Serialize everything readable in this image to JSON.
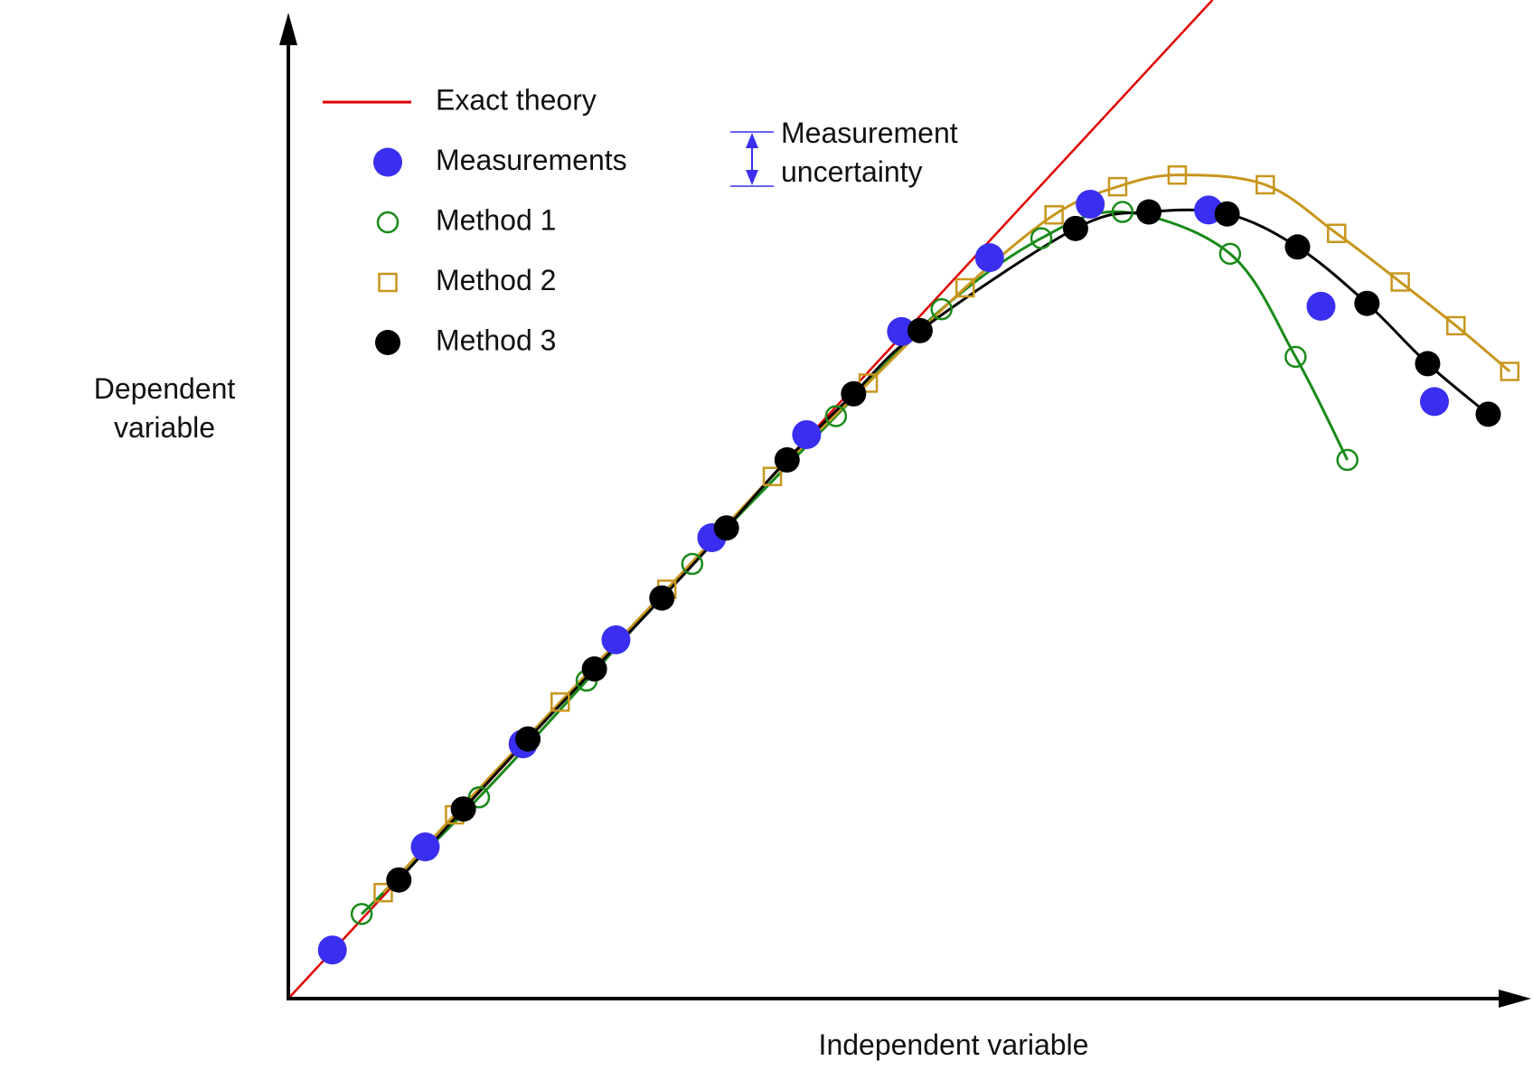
{
  "chart_data": {
    "type": "scatter",
    "x_label": "Independent variable",
    "y_label": "Dependent variable",
    "xlim": [
      0,
      1270
    ],
    "ylim": [
      0,
      1027
    ],
    "legend": "upper left",
    "uncertainty_label": "Measurement uncertainty",
    "uncertainty_color": "#3a2ff0",
    "series": [
      {
        "name": "Exact theory",
        "color": "#e00000",
        "marker": "none",
        "line": true,
        "x": [
          0,
          945
        ],
        "values": [
          0,
          1027
        ]
      },
      {
        "name": "Measurements",
        "color": "#3a2ff0",
        "marker": "filled-circle",
        "line": false,
        "x": [
          45,
          140,
          240,
          335,
          433,
          530,
          627,
          717,
          820,
          941,
          1056,
          1172
        ],
        "values": [
          50,
          156,
          262,
          369,
          474,
          580,
          686,
          762,
          817,
          811,
          712,
          614
        ]
      },
      {
        "name": "Method 1",
        "color": "#1a8a1a",
        "marker": "open-circle",
        "line": true,
        "x": [
          75,
          195,
          305,
          413,
          560,
          668,
          770,
          853,
          963,
          1030,
          1083
        ],
        "values": [
          87,
          207,
          327,
          447,
          599,
          709,
          782,
          809,
          766,
          660,
          554
        ]
      },
      {
        "name": "Method 2",
        "color": "#c8961e",
        "marker": "open-square",
        "line": true,
        "x": [
          97,
          170,
          278,
          387,
          495,
          593,
          692,
          783,
          848,
          909,
          999,
          1072,
          1137,
          1194,
          1249
        ],
        "values": [
          109,
          189,
          305,
          421,
          537,
          633,
          731,
          806,
          835,
          847,
          837,
          787,
          737,
          692,
          645
        ]
      },
      {
        "name": "Method 3",
        "color": "#000000",
        "marker": "filled-circle-small",
        "line": true,
        "x": [
          113,
          179,
          245,
          313,
          382,
          448,
          510,
          578,
          646,
          805,
          880,
          960,
          1032,
          1103,
          1165,
          1227
        ],
        "values": [
          122,
          195,
          267,
          339,
          412,
          484,
          554,
          622,
          687,
          792,
          809,
          807,
          773,
          715,
          653,
          601
        ]
      }
    ]
  }
}
